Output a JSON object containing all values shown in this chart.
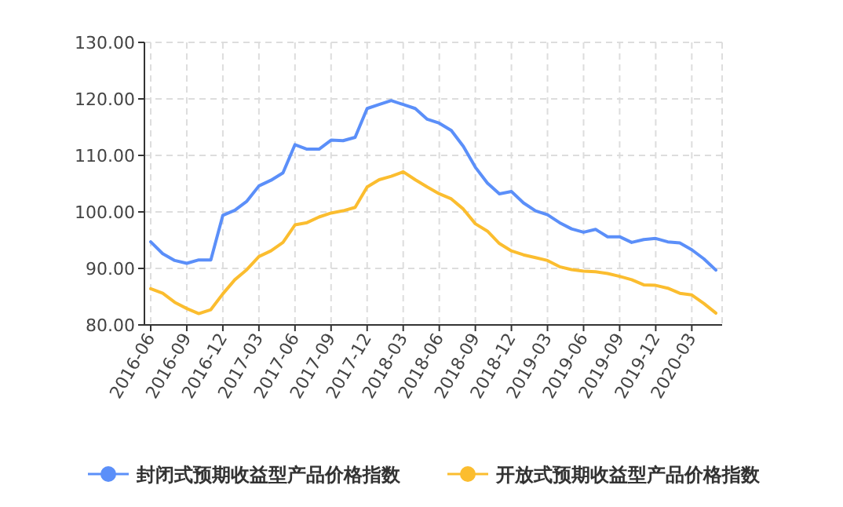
{
  "chart_data": {
    "type": "line",
    "categories": [
      "2016-06",
      null,
      null,
      "2016-09",
      null,
      null,
      "2016-12",
      null,
      null,
      "2017-03",
      null,
      null,
      "2017-06",
      null,
      null,
      "2017-09",
      null,
      null,
      "2017-12",
      null,
      null,
      "2018-03",
      null,
      null,
      "2018-06",
      null,
      null,
      "2018-09",
      null,
      null,
      "2018-12",
      null,
      null,
      "2019-03",
      null,
      null,
      "2019-06",
      null,
      null,
      "2019-09",
      null,
      null,
      "2019-12",
      null,
      null,
      "2020-03",
      null,
      null
    ],
    "series": [
      {
        "name": "封闭式预期收益型产品价格指数",
        "color": "#5b8ff9",
        "values": [
          94.7,
          92.6,
          91.4,
          90.9,
          91.5,
          91.5,
          99.4,
          100.3,
          101.9,
          104.6,
          105.6,
          106.9,
          111.9,
          111.1,
          111.1,
          112.7,
          112.6,
          113.2,
          118.3,
          119.0,
          119.7,
          119.0,
          118.3,
          116.4,
          115.7,
          114.4,
          111.6,
          107.9,
          105.1,
          103.2,
          103.6,
          101.6,
          100.2,
          99.5,
          98.1,
          97.0,
          96.4,
          96.9,
          95.6,
          95.6,
          94.6,
          95.1,
          95.3,
          94.7,
          94.5,
          93.3,
          91.7,
          89.7
        ]
      },
      {
        "name": "开放式预期收益型产品价格指数",
        "color": "#fbbd2f",
        "values": [
          86.4,
          85.6,
          84.0,
          82.9,
          82.0,
          82.7,
          85.5,
          88.0,
          89.8,
          92.1,
          93.1,
          94.6,
          97.7,
          98.1,
          99.1,
          99.8,
          100.2,
          100.8,
          104.4,
          105.7,
          106.3,
          107.1,
          105.7,
          104.4,
          103.2,
          102.3,
          100.5,
          97.9,
          96.6,
          94.4,
          93.1,
          92.4,
          91.9,
          91.4,
          90.3,
          89.8,
          89.5,
          89.4,
          89.1,
          88.6,
          88.0,
          87.1,
          87.0,
          86.5,
          85.6,
          85.3,
          83.8,
          82.1
        ]
      }
    ],
    "ylim": [
      80,
      130
    ],
    "yticks": [
      {
        "value": 80,
        "label": "80.00"
      },
      {
        "value": 90,
        "label": "90.00"
      },
      {
        "value": 100,
        "label": "100.00"
      },
      {
        "value": 110,
        "label": "110.00"
      },
      {
        "value": 120,
        "label": "120.00"
      },
      {
        "value": 130,
        "label": "130.00"
      }
    ],
    "grid": true,
    "legend": "bottom",
    "marker": "none",
    "line_style": "solid"
  }
}
